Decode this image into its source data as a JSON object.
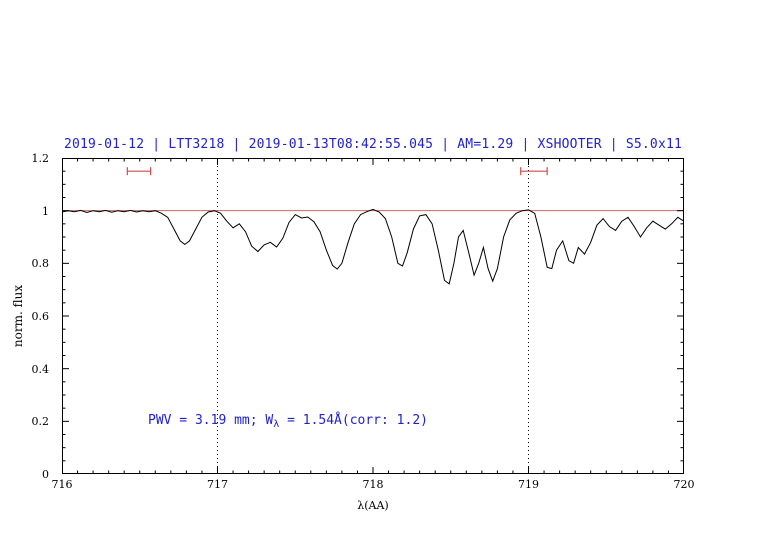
{
  "chart_data": {
    "type": "line",
    "title": "2019-01-12 | LTT3218 | 2019-01-13T08:42:55.045 | AM=1.29 | XSHOOTER | S5.0x11",
    "xlabel": "λ(AA)",
    "ylabel": "norm. flux",
    "xlim": [
      716,
      720
    ],
    "ylim": [
      0,
      1.2
    ],
    "x_ticks": [
      716,
      717,
      718,
      719,
      720
    ],
    "x_tick_labels": [
      "716",
      "717",
      "718",
      "719",
      "720"
    ],
    "y_ticks": [
      0,
      0.2,
      0.4,
      0.6,
      0.8,
      1,
      1.2
    ],
    "y_tick_labels": [
      "0",
      "0.2",
      "0.4",
      "0.6",
      "0.8",
      "1",
      "1.2"
    ],
    "x_minor_step": 0.1,
    "y_minor_step": 0.05,
    "grid": false,
    "legend": "none",
    "reference_line_y": 1.0,
    "dotted_vlines": [
      717,
      719
    ],
    "range_markers": [
      {
        "x1": 716.42,
        "x2": 716.57,
        "y": 1.15
      },
      {
        "x1": 718.95,
        "x2": 719.12,
        "y": 1.15
      }
    ],
    "annotation": {
      "part1": "PWV = 3.19 mm; W",
      "sub": "λ",
      "part2": " = 1.54Å(corr: 1.2)"
    },
    "colors": {
      "title": "#2222cc",
      "annotation": "#2222cc",
      "reference_line": "#cc6666",
      "marker": "#cc4d4d",
      "dotted_line": "#000000",
      "spectrum": "#000000",
      "axis": "#000000"
    },
    "series": [
      {
        "name": "spectrum",
        "color": "#000000",
        "points": [
          [
            716.0,
            0.995
          ],
          [
            716.04,
            1.0
          ],
          [
            716.08,
            0.996
          ],
          [
            716.12,
            1.001
          ],
          [
            716.16,
            0.993
          ],
          [
            716.2,
            1.0
          ],
          [
            716.24,
            0.996
          ],
          [
            716.28,
            1.001
          ],
          [
            716.32,
            0.994
          ],
          [
            716.36,
            1.0
          ],
          [
            716.4,
            0.996
          ],
          [
            716.44,
            1.001
          ],
          [
            716.48,
            0.995
          ],
          [
            716.52,
            1.0
          ],
          [
            716.56,
            0.996
          ],
          [
            716.6,
            1.0
          ],
          [
            716.64,
            0.99
          ],
          [
            716.68,
            0.975
          ],
          [
            716.72,
            0.93
          ],
          [
            716.76,
            0.885
          ],
          [
            716.79,
            0.872
          ],
          [
            716.82,
            0.885
          ],
          [
            716.86,
            0.93
          ],
          [
            716.9,
            0.975
          ],
          [
            716.94,
            0.995
          ],
          [
            716.98,
            1.0
          ],
          [
            717.02,
            0.99
          ],
          [
            717.06,
            0.96
          ],
          [
            717.1,
            0.935
          ],
          [
            717.14,
            0.95
          ],
          [
            717.18,
            0.92
          ],
          [
            717.22,
            0.865
          ],
          [
            717.26,
            0.845
          ],
          [
            717.3,
            0.87
          ],
          [
            717.34,
            0.88
          ],
          [
            717.38,
            0.862
          ],
          [
            717.42,
            0.895
          ],
          [
            717.46,
            0.955
          ],
          [
            717.5,
            0.985
          ],
          [
            717.54,
            0.972
          ],
          [
            717.58,
            0.976
          ],
          [
            717.62,
            0.958
          ],
          [
            717.66,
            0.92
          ],
          [
            717.7,
            0.85
          ],
          [
            717.74,
            0.792
          ],
          [
            717.77,
            0.778
          ],
          [
            717.8,
            0.8
          ],
          [
            717.84,
            0.88
          ],
          [
            717.88,
            0.95
          ],
          [
            717.92,
            0.985
          ],
          [
            717.96,
            0.996
          ],
          [
            718.0,
            1.005
          ],
          [
            718.04,
            0.995
          ],
          [
            718.08,
            0.97
          ],
          [
            718.12,
            0.9
          ],
          [
            718.16,
            0.8
          ],
          [
            718.19,
            0.79
          ],
          [
            718.22,
            0.84
          ],
          [
            718.26,
            0.93
          ],
          [
            718.3,
            0.98
          ],
          [
            718.34,
            0.985
          ],
          [
            718.38,
            0.95
          ],
          [
            718.42,
            0.85
          ],
          [
            718.46,
            0.735
          ],
          [
            718.49,
            0.722
          ],
          [
            718.52,
            0.8
          ],
          [
            718.55,
            0.9
          ],
          [
            718.58,
            0.925
          ],
          [
            718.62,
            0.83
          ],
          [
            718.65,
            0.755
          ],
          [
            718.68,
            0.8
          ],
          [
            718.71,
            0.86
          ],
          [
            718.74,
            0.78
          ],
          [
            718.77,
            0.732
          ],
          [
            718.8,
            0.78
          ],
          [
            718.84,
            0.9
          ],
          [
            718.88,
            0.965
          ],
          [
            718.92,
            0.99
          ],
          [
            718.96,
            1.0
          ],
          [
            719.0,
            1.003
          ],
          [
            719.04,
            0.99
          ],
          [
            719.08,
            0.9
          ],
          [
            719.12,
            0.785
          ],
          [
            719.15,
            0.78
          ],
          [
            719.18,
            0.85
          ],
          [
            719.22,
            0.885
          ],
          [
            719.26,
            0.81
          ],
          [
            719.29,
            0.8
          ],
          [
            719.32,
            0.86
          ],
          [
            719.36,
            0.835
          ],
          [
            719.4,
            0.88
          ],
          [
            719.44,
            0.945
          ],
          [
            719.48,
            0.97
          ],
          [
            719.52,
            0.94
          ],
          [
            719.56,
            0.925
          ],
          [
            719.6,
            0.96
          ],
          [
            719.64,
            0.975
          ],
          [
            719.68,
            0.94
          ],
          [
            719.72,
            0.9
          ],
          [
            719.76,
            0.935
          ],
          [
            719.8,
            0.96
          ],
          [
            719.84,
            0.945
          ],
          [
            719.88,
            0.93
          ],
          [
            719.92,
            0.95
          ],
          [
            719.96,
            0.975
          ],
          [
            720.0,
            0.96
          ]
        ]
      }
    ]
  }
}
